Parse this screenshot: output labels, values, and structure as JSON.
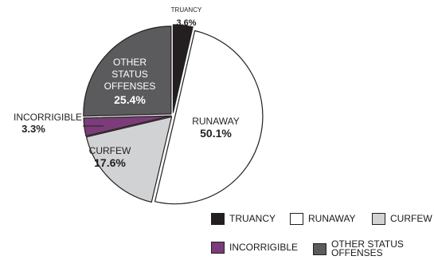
{
  "chart_data": {
    "type": "pie",
    "title": "",
    "slices": [
      {
        "name": "TRUANCY",
        "value": 3.6,
        "value_label": "3.6%",
        "color": "#231f20",
        "label_lines": [
          "TRUANCY"
        ]
      },
      {
        "name": "RUNAWAY",
        "value": 50.1,
        "value_label": "50.1%",
        "color": "#ffffff",
        "label_lines": [
          "RUNAWAY"
        ]
      },
      {
        "name": "CURFEW",
        "value": 17.6,
        "value_label": "17.6%",
        "color": "#d1d2d4",
        "label_lines": [
          "CURFEW"
        ]
      },
      {
        "name": "INCORRIGIBLE",
        "value": 3.3,
        "value_label": "3.3%",
        "color": "#7a3d7a",
        "label_lines": [
          "INCORRIGIBLE"
        ]
      },
      {
        "name": "OTHER STATUS OFFENSES",
        "value": 25.4,
        "value_label": "25.4%",
        "color": "#5b5b5d",
        "label_lines": [
          "OTHER",
          "STATUS",
          "OFFENSES"
        ]
      }
    ],
    "legend": {
      "placement": "bottom-right",
      "items": [
        {
          "name": "TRUANCY",
          "color": "#231f20",
          "lines": [
            "TRUANCY"
          ]
        },
        {
          "name": "RUNAWAY",
          "color": "#ffffff",
          "lines": [
            "RUNAWAY"
          ]
        },
        {
          "name": "CURFEW",
          "color": "#d1d2d4",
          "lines": [
            "CURFEW"
          ]
        },
        {
          "name": "INCORRIGIBLE",
          "color": "#7a3d7a",
          "lines": [
            "INCORRIGIBLE"
          ]
        },
        {
          "name": "OTHER STATUS OFFENSES",
          "color": "#5b5b5d",
          "lines": [
            "OTHER STATUS",
            "OFFENSES"
          ]
        }
      ]
    }
  }
}
